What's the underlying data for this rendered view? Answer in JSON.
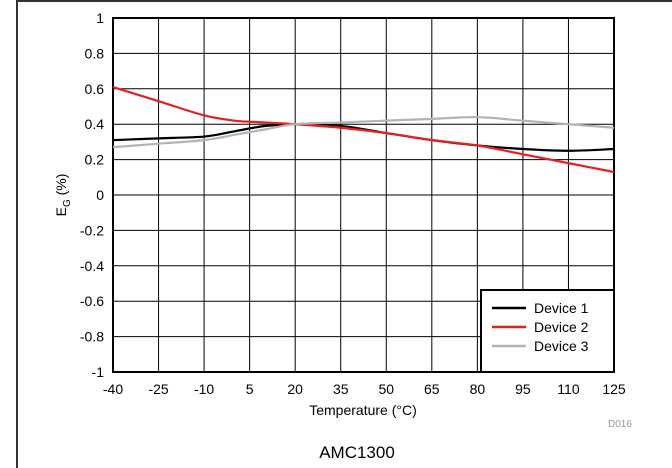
{
  "chart_data": {
    "type": "line",
    "xlabel": "Temperature (°C)",
    "ylabel_main": "E",
    "ylabel_sub": "G",
    "ylabel_unit": " (%)",
    "xlim": [
      -40,
      125
    ],
    "ylim": [
      -1,
      1
    ],
    "x_ticks": [
      -40,
      -25,
      -10,
      5,
      20,
      35,
      50,
      65,
      80,
      95,
      110,
      125
    ],
    "y_ticks": [
      -1,
      -0.8,
      -0.6,
      -0.4,
      -0.2,
      0,
      0.2,
      0.4,
      0.6,
      0.8,
      1
    ],
    "grid": true,
    "legend_position": "bottom-right",
    "series": [
      {
        "name": "Device 1",
        "color": "#000000",
        "x": [
          -40,
          -25,
          -10,
          0,
          10,
          20,
          35,
          50,
          65,
          80,
          95,
          110,
          125
        ],
        "y": [
          0.31,
          0.32,
          0.33,
          0.36,
          0.39,
          0.4,
          0.39,
          0.35,
          0.31,
          0.28,
          0.26,
          0.25,
          0.26
        ]
      },
      {
        "name": "Device 2",
        "color": "#e8201d",
        "x": [
          -40,
          -25,
          -10,
          0,
          10,
          20,
          35,
          50,
          65,
          80,
          95,
          110,
          125
        ],
        "y": [
          0.61,
          0.53,
          0.45,
          0.42,
          0.41,
          0.4,
          0.38,
          0.35,
          0.31,
          0.28,
          0.23,
          0.18,
          0.13
        ]
      },
      {
        "name": "Device 3",
        "color": "#b3b3b3",
        "x": [
          -40,
          -25,
          -10,
          0,
          10,
          20,
          35,
          50,
          65,
          80,
          95,
          110,
          125
        ],
        "y": [
          0.27,
          0.29,
          0.31,
          0.34,
          0.37,
          0.4,
          0.41,
          0.42,
          0.43,
          0.44,
          0.42,
          0.4,
          0.38
        ]
      }
    ]
  },
  "figure_id": "D016",
  "caption": "AMC1300"
}
